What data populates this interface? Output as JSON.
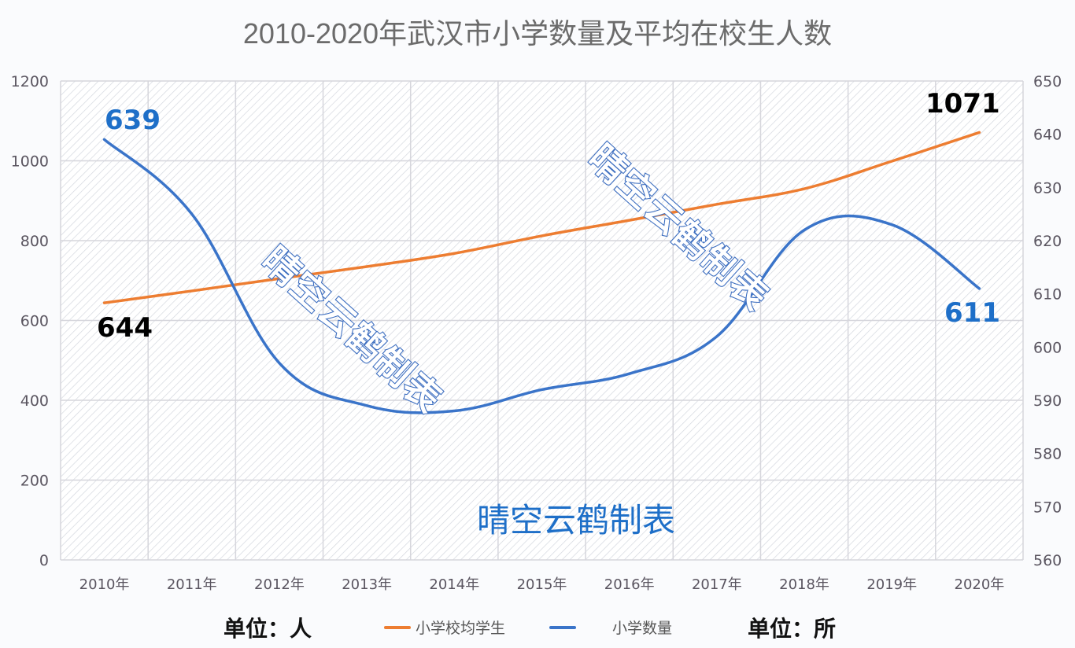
{
  "title": "2010-2020年武汉市小学数量及平均在校生人数",
  "legend": {
    "left_unit": "单位：人",
    "right_unit": "单位：所",
    "items": [
      {
        "label": "小学校均学生",
        "color": "#ed7d31"
      },
      {
        "label": "小学数量",
        "color": "#3a74c9"
      }
    ]
  },
  "watermarks": {
    "stamp_text": "晴空云鹤制表",
    "plain_text": "晴空云鹤制表"
  },
  "annotations": {
    "blue_start": "639",
    "blue_end": "611",
    "orange_start": "644",
    "orange_end": "1071"
  },
  "colors": {
    "orange": "#ed7d31",
    "blue": "#3a74c9",
    "label_blue": "#1e6fc8",
    "grid": "#d6d6dc",
    "hatch": "#cfd3da"
  },
  "chart_data": {
    "type": "line",
    "title": "2010-2020年武汉市小学数量及平均在校生人数",
    "categories": [
      "2010年",
      "2011年",
      "2012年",
      "2013年",
      "2014年",
      "2015年",
      "2016年",
      "2017年",
      "2018年",
      "2019年",
      "2020年"
    ],
    "series": [
      {
        "name": "小学校均学生",
        "axis": "left",
        "unit": "人",
        "color": "#ed7d31",
        "values": [
          644,
          674,
          705,
          735,
          768,
          812,
          851,
          891,
          930,
          999,
          1071
        ]
      },
      {
        "name": "小学数量",
        "axis": "right",
        "unit": "所",
        "color": "#3a74c9",
        "values": [
          639,
          625,
          597,
          589,
          588,
          592,
          595,
          602,
          622,
          623,
          611
        ]
      }
    ],
    "y_left": {
      "label": "单位：人",
      "range": [
        0,
        1200
      ],
      "ticks": [
        0,
        200,
        400,
        600,
        800,
        1000,
        1200
      ]
    },
    "y_right": {
      "label": "单位：所",
      "range": [
        560,
        650
      ],
      "ticks": [
        560,
        570,
        580,
        590,
        600,
        610,
        620,
        630,
        640,
        650
      ]
    },
    "grid": true,
    "smooth": true,
    "legend_position": "bottom",
    "data_labels": [
      {
        "series": "小学数量",
        "category": "2010年",
        "text": "639"
      },
      {
        "series": "小学数量",
        "category": "2020年",
        "text": "611"
      },
      {
        "series": "小学校均学生",
        "category": "2010年",
        "text": "644"
      },
      {
        "series": "小学校均学生",
        "category": "2020年",
        "text": "1071"
      }
    ]
  }
}
